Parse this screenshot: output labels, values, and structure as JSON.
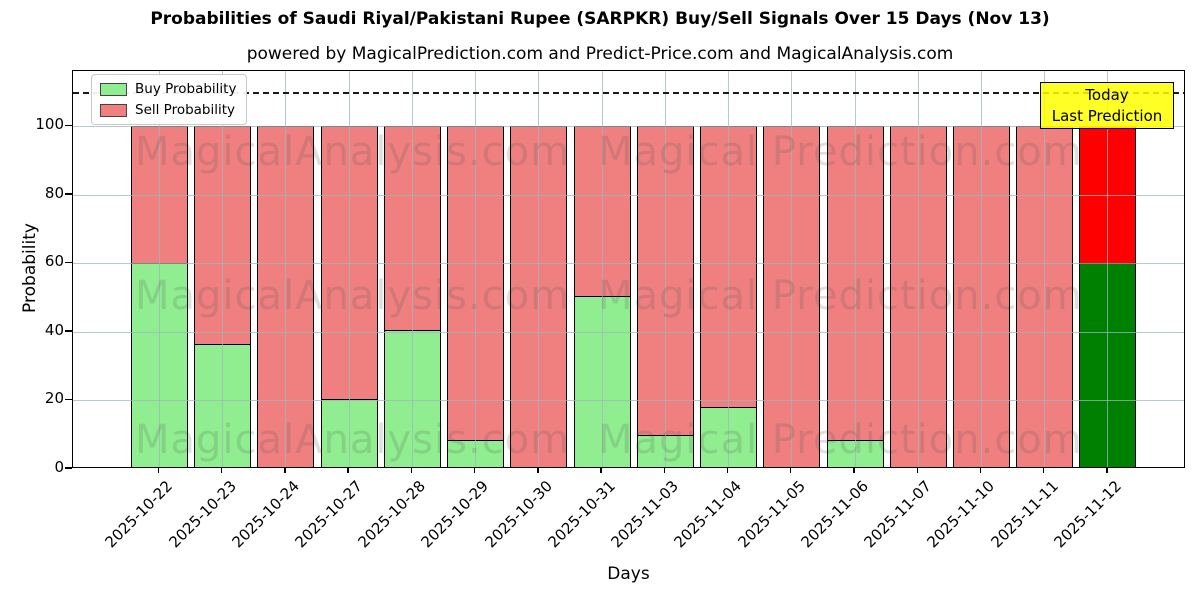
{
  "title": "Probabilities of Saudi Riyal/Pakistani Rupee (SARPKR) Buy/Sell Signals Over 15 Days (Nov 13)",
  "subtitle": "powered by MagicalPrediction.com and Predict-Price.com and MagicalAnalysis.com",
  "legend": {
    "items": [
      {
        "label": "Buy Probability",
        "color": "#90ee90"
      },
      {
        "label": "Sell Probability",
        "color": "#f08080"
      }
    ]
  },
  "annotation_box": {
    "line1": "Today",
    "line2": "Last Prediction",
    "bg_color": "#ffff00"
  },
  "watermarks": {
    "left_text": "MagicalAnalysis.com",
    "right_text": "Magical Prediction.com"
  },
  "chart_data": {
    "type": "bar",
    "stacked": true,
    "title": "Probabilities of Saudi Riyal/Pakistani Rupee (SARPKR) Buy/Sell Signals Over 15 Days (Nov 13)",
    "xlabel": "Days",
    "ylabel": "Probability",
    "categories": [
      "2025-10-22",
      "2025-10-23",
      "2025-10-24",
      "2025-10-27",
      "2025-10-28",
      "2025-10-29",
      "2025-10-30",
      "2025-10-31",
      "2025-11-03",
      "2025-11-04",
      "2025-11-05",
      "2025-11-06",
      "2025-11-07",
      "2025-11-10",
      "2025-11-11",
      "2025-11-12"
    ],
    "series": [
      {
        "name": "Buy Probability",
        "color": "#90ee90",
        "values": [
          60,
          36.5,
          0,
          20.5,
          40.5,
          8.5,
          0,
          50.5,
          10,
          18,
          0,
          8.5,
          0,
          0,
          0,
          60
        ]
      },
      {
        "name": "Sell Probability",
        "color": "#f08080",
        "values": [
          40,
          63.5,
          100,
          79.5,
          59.5,
          91.5,
          100,
          49.5,
          90,
          82,
          100,
          91.5,
          100,
          100,
          100,
          40
        ]
      }
    ],
    "bar_total": 100,
    "yticks": [
      0,
      20,
      40,
      60,
      80,
      100
    ],
    "ylim": [
      0,
      116.2
    ],
    "dashed_line_y": 110,
    "grid": true,
    "legend_position": "upper left",
    "today_bar": {
      "index": 15,
      "category": "2025-11-12",
      "buy_color": "#008000",
      "sell_color": "#ff0000"
    }
  }
}
